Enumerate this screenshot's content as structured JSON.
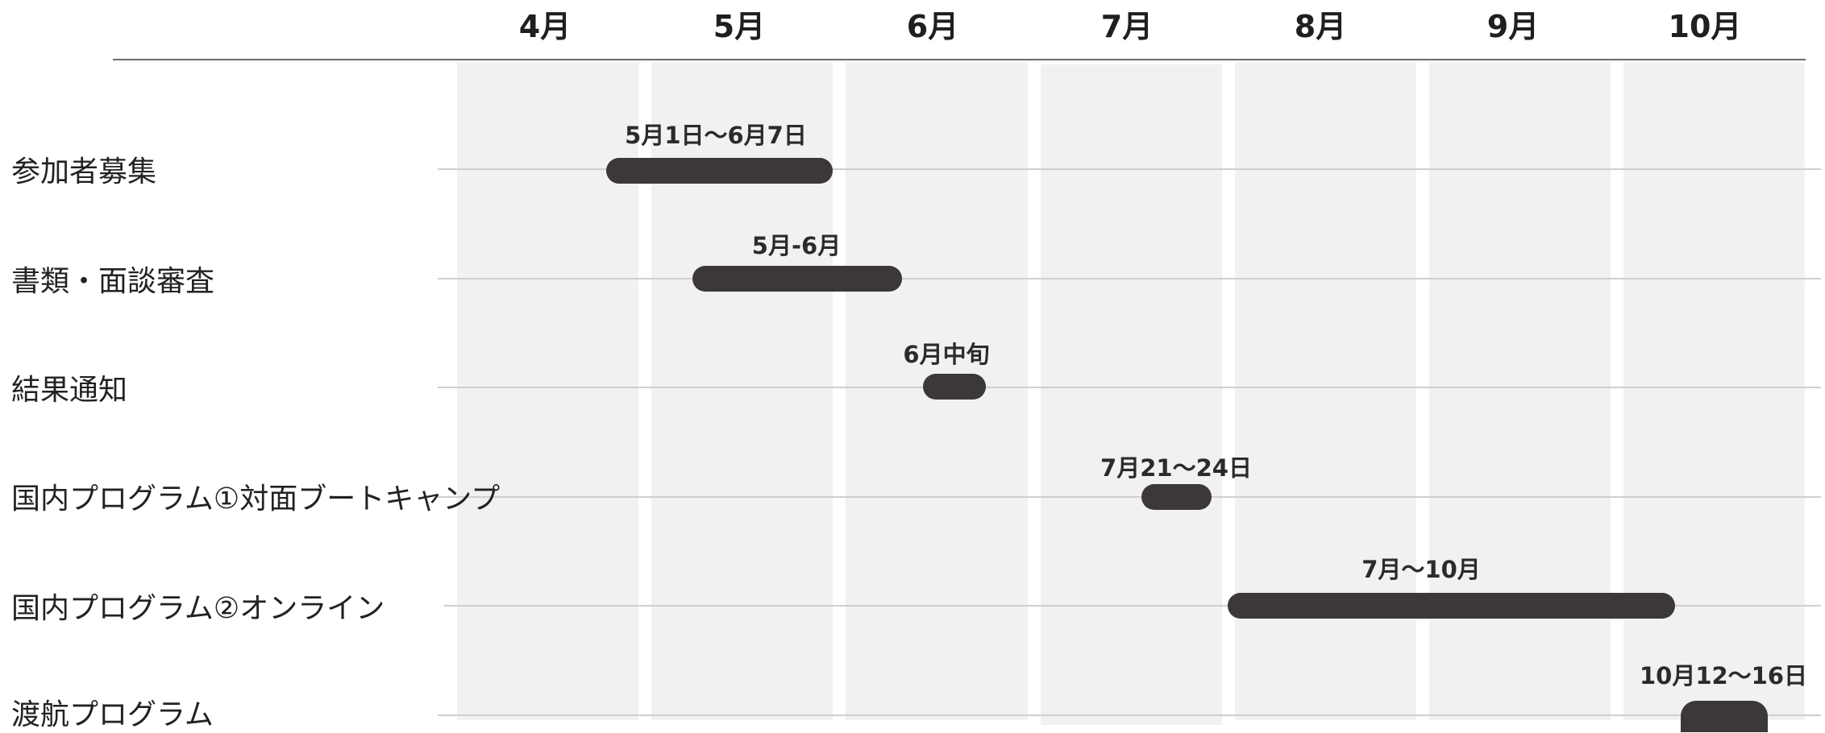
{
  "months": [
    "4月",
    "5月",
    "6月",
    "7月",
    "8月",
    "9月",
    "10月"
  ],
  "tasks": [
    {
      "label": "参加者募集",
      "period_label": "5月1日〜6月7日",
      "start": "5月1日",
      "end": "6月7日"
    },
    {
      "label": "書類・面談審査",
      "period_label": "5月-6月",
      "start": "5月",
      "end": "6月"
    },
    {
      "label": "結果通知",
      "period_label": "6月中旬",
      "start": "6月中旬",
      "end": "6月中旬"
    },
    {
      "label": "国内プログラム①対面ブートキャンプ",
      "period_label": "7月21〜24日",
      "start": "7月21日",
      "end": "7月24日"
    },
    {
      "label": "国内プログラム②オンライン",
      "period_label": "7月〜10月",
      "start": "7月",
      "end": "10月"
    },
    {
      "label": "渡航プログラム",
      "period_label": "10月12〜16日",
      "start": "10月12日",
      "end": "10月16日"
    }
  ],
  "colors": {
    "bar": "#3b3837",
    "column_background": "#f1f1f2",
    "row_line": "#cfcfcf",
    "header_line": "#6b6b6b"
  }
}
